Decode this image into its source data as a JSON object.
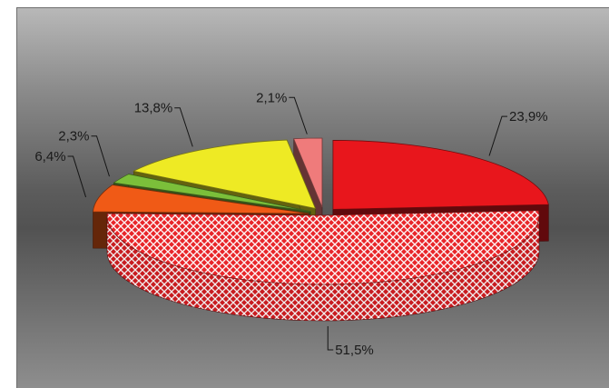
{
  "chart_data": {
    "type": "pie",
    "three_d": true,
    "title": "",
    "legend": "none",
    "slices": [
      {
        "label": "23,9%",
        "value": 23.9,
        "color": "#e8161c",
        "exploded": true
      },
      {
        "label": "51,5%",
        "value": 51.5,
        "color": "#ed2a2a",
        "pattern": "white crosshatch",
        "exploded": false
      },
      {
        "label": "6,4%",
        "value": 6.4,
        "color": "#f05a16",
        "exploded": true
      },
      {
        "label": "2,3%",
        "value": 2.3,
        "color": "#7bbf3a",
        "exploded": true
      },
      {
        "label": "13,8%",
        "value": 13.8,
        "color": "#eeea24",
        "exploded": true
      },
      {
        "label": "2,1%",
        "value": 2.1,
        "color": "#ef7b7b",
        "exploded": true
      }
    ]
  }
}
